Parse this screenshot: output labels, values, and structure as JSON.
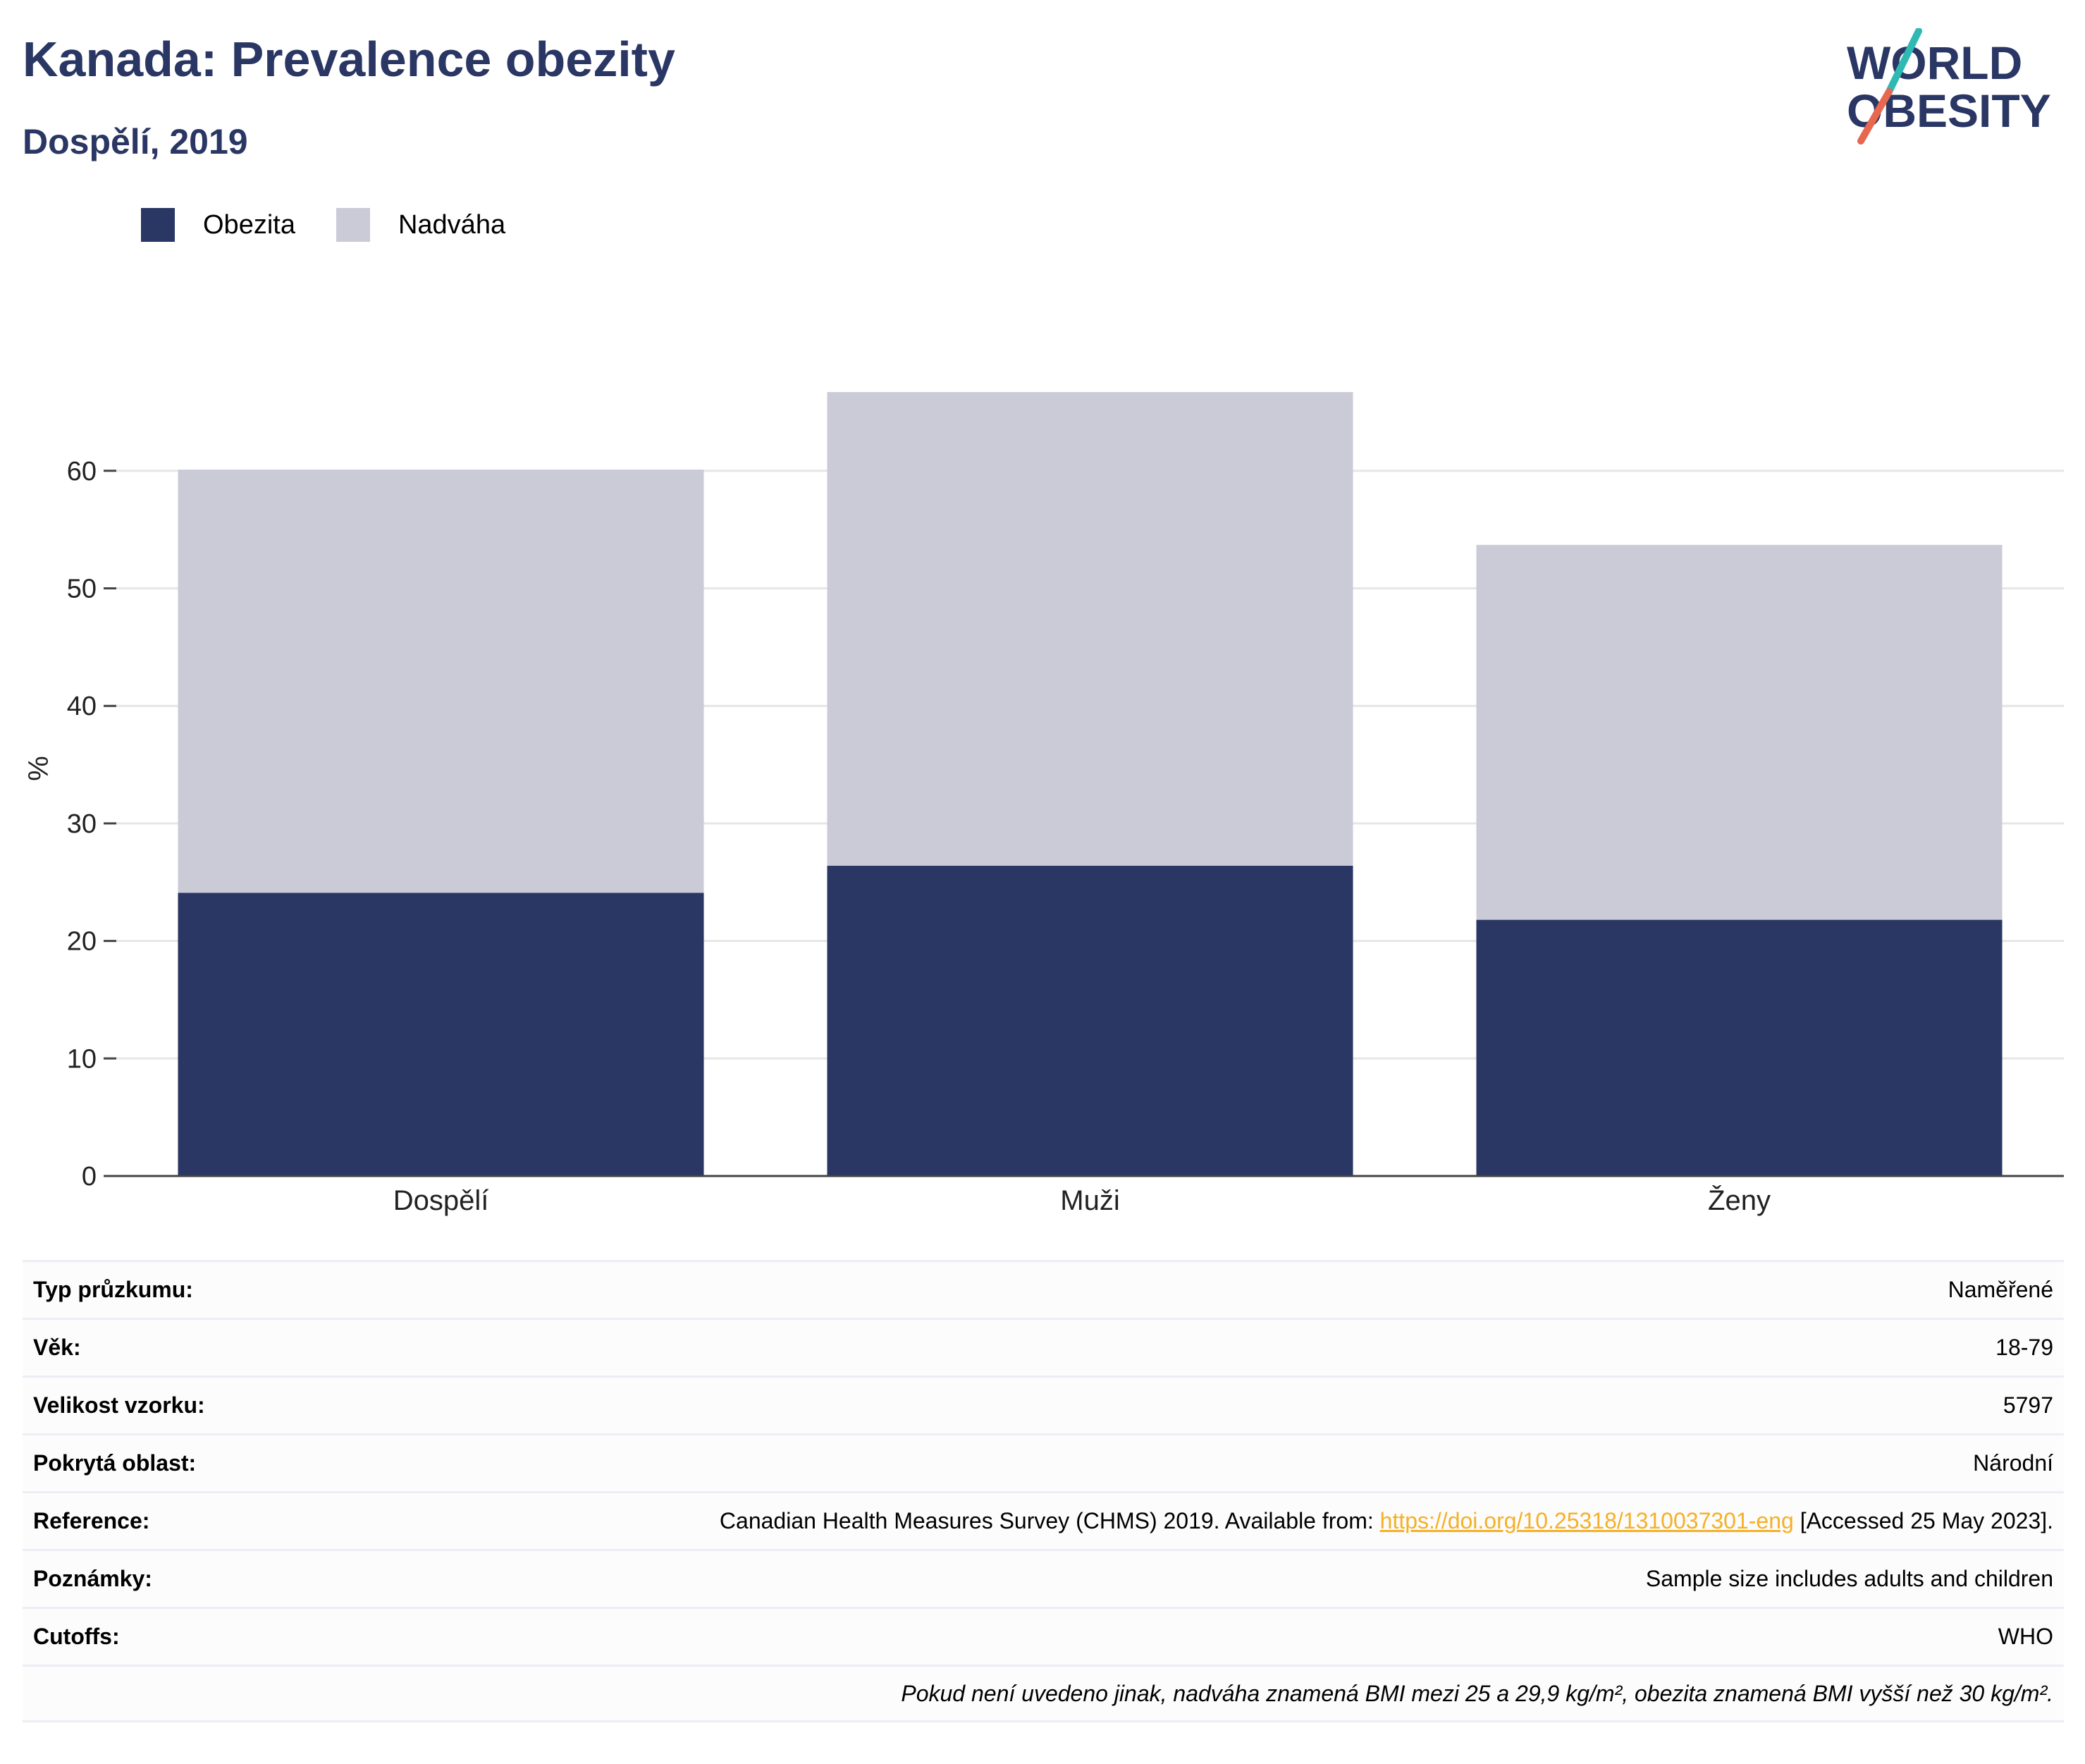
{
  "title": "Kanada: Prevalence obezity",
  "subtitle": "Dospělí, 2019",
  "logo": {
    "line1": "WORLD",
    "line2": "OBESITY"
  },
  "colors": {
    "obezita": "#2a3663",
    "nadvaha": "#cacbd7",
    "title": "#2a3663",
    "link": "#f5b027",
    "logo_teal": "#2fb9b3",
    "logo_red": "#e8674f"
  },
  "chart_data": {
    "type": "bar",
    "stacked": true,
    "categories": [
      "Dospělí",
      "Muži",
      "Ženy"
    ],
    "series": [
      {
        "name": "Obezita",
        "values": [
          24.1,
          26.4,
          21.8
        ]
      },
      {
        "name": "Nadváha",
        "values": [
          36.0,
          40.3,
          31.9
        ]
      }
    ],
    "ylabel": "%",
    "ylim": [
      0,
      70
    ],
    "yticks": [
      0,
      10,
      20,
      30,
      40,
      50,
      60
    ],
    "grid": true,
    "legend_position": "top-left"
  },
  "info": {
    "rows": [
      {
        "key": "Typ průzkumu:",
        "value": "Naměřené"
      },
      {
        "key": "Věk:",
        "value": "18-79"
      },
      {
        "key": "Velikost vzorku:",
        "value": "5797"
      },
      {
        "key": "Pokrytá oblast:",
        "value": "Národní"
      },
      {
        "key": "Reference:",
        "value_pre": "Canadian Health Measures Survey (CHMS) 2019. Available from: ",
        "link": "https://doi.org/10.25318/1310037301-eng",
        "value_post": " [Accessed 25 May 2023]."
      },
      {
        "key": "Poznámky:",
        "value": "Sample size includes adults and children"
      },
      {
        "key": "Cutoffs:",
        "value": "WHO"
      }
    ],
    "footnote": "Pokud není uvedeno jinak, nadváha znamená BMI mezi 25 a 29,9 kg/m², obezita znamená BMI vyšší než 30 kg/m²."
  }
}
